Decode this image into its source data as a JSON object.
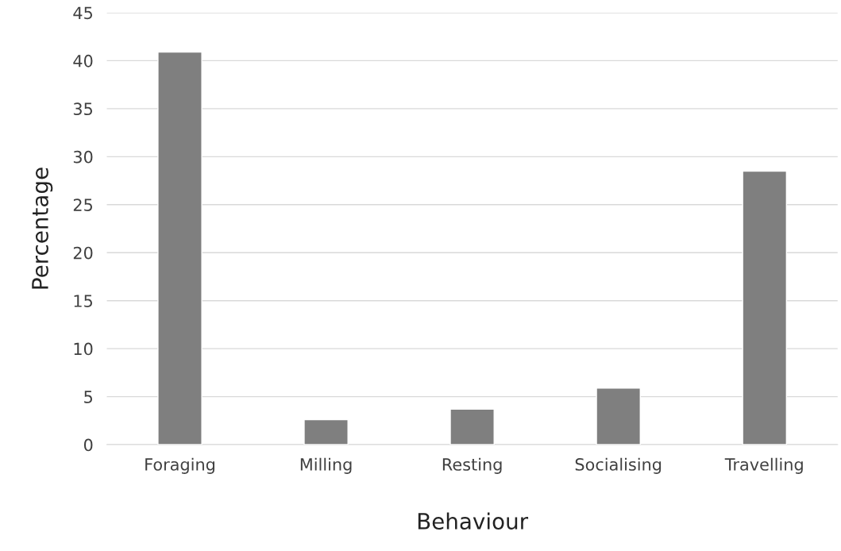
{
  "chart_data": {
    "type": "bar",
    "xlabel": "Behaviour",
    "ylabel": "Percentage",
    "categories": [
      "Foraging",
      "Milling",
      "Resting",
      "Socialising",
      "Travelling"
    ],
    "values": [
      40.9,
      2.6,
      3.7,
      5.9,
      28.5
    ],
    "color": "#7f7f7f",
    "ylim": [
      0,
      45
    ],
    "yticks": [
      0,
      5,
      10,
      15,
      20,
      25,
      30,
      35,
      40,
      45
    ],
    "grid": "y",
    "legend": false
  }
}
